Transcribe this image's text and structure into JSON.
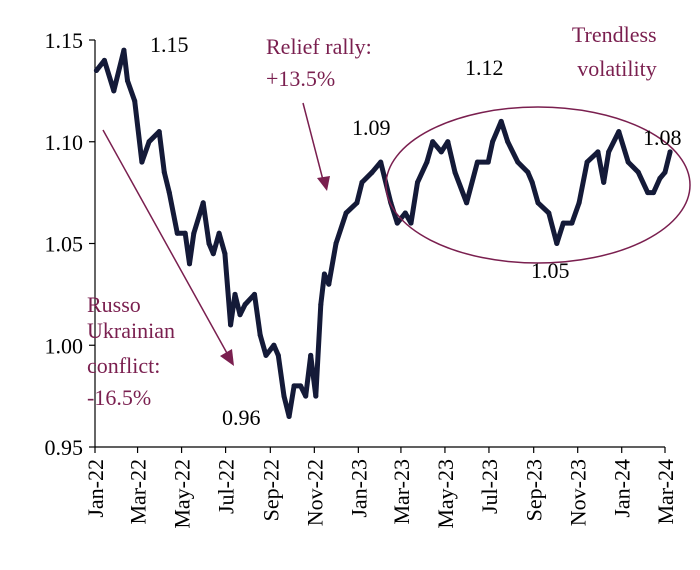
{
  "chart_data": {
    "type": "line",
    "title": "",
    "xlabel": "",
    "ylabel": "",
    "ylim": [
      0.95,
      1.15
    ],
    "yticks": [
      "0.95",
      "1.00",
      "1.05",
      "1.10",
      "1.15"
    ],
    "xticks": [
      "Jan-22",
      "Mar-22",
      "May-22",
      "Jul-22",
      "Sep-22",
      "Nov-22",
      "Jan-23",
      "Mar-23",
      "May-23",
      "Jul-23",
      "Sep-23",
      "Nov-23",
      "Jan-24",
      "Mar-24"
    ],
    "grid": false,
    "colors": {
      "line": "#141a38",
      "annotation": "#7a1f4f",
      "text": "#000000"
    },
    "series": [
      {
        "x": [
          "2022-01-03",
          "2022-01-14",
          "2022-01-27",
          "2022-02-10",
          "2022-02-15",
          "2022-02-25",
          "2022-03-07",
          "2022-03-17",
          "2022-03-31",
          "2022-04-07",
          "2022-04-14",
          "2022-04-25",
          "2022-05-06",
          "2022-05-12",
          "2022-05-18",
          "2022-05-31",
          "2022-06-08",
          "2022-06-14",
          "2022-06-22",
          "2022-06-30",
          "2022-07-08",
          "2022-07-14",
          "2022-07-21",
          "2022-07-28",
          "2022-08-10",
          "2022-08-18",
          "2022-08-26",
          "2022-09-06",
          "2022-09-12",
          "2022-09-20",
          "2022-09-27",
          "2022-10-04",
          "2022-10-13",
          "2022-10-20",
          "2022-10-27",
          "2022-11-03",
          "2022-11-10",
          "2022-11-15",
          "2022-11-21",
          "2022-12-01",
          "2022-12-15",
          "2022-12-30",
          "2023-01-06",
          "2023-01-20",
          "2023-02-01",
          "2023-02-15",
          "2023-02-24",
          "2023-03-07",
          "2023-03-15",
          "2023-03-24",
          "2023-04-06",
          "2023-04-14",
          "2023-04-26",
          "2023-05-05",
          "2023-05-15",
          "2023-05-31",
          "2023-06-15",
          "2023-06-30",
          "2023-07-06",
          "2023-07-18",
          "2023-07-27",
          "2023-08-10",
          "2023-08-24",
          "2023-08-30",
          "2023-09-07",
          "2023-09-22",
          "2023-10-03",
          "2023-10-12",
          "2023-10-24",
          "2023-11-03",
          "2023-11-14",
          "2023-11-29",
          "2023-12-07",
          "2023-12-14",
          "2023-12-28",
          "2024-01-10",
          "2024-01-24",
          "2024-02-06",
          "2024-02-14",
          "2024-02-23",
          "2024-03-01",
          "2024-03-08"
        ],
        "values": [
          1.135,
          1.14,
          1.125,
          1.145,
          1.13,
          1.12,
          1.09,
          1.1,
          1.105,
          1.085,
          1.075,
          1.055,
          1.055,
          1.04,
          1.055,
          1.07,
          1.05,
          1.045,
          1.055,
          1.045,
          1.01,
          1.025,
          1.015,
          1.02,
          1.025,
          1.005,
          0.995,
          1.0,
          0.995,
          0.975,
          0.965,
          0.98,
          0.98,
          0.975,
          0.995,
          0.975,
          1.02,
          1.035,
          1.03,
          1.05,
          1.065,
          1.07,
          1.08,
          1.085,
          1.09,
          1.07,
          1.06,
          1.065,
          1.06,
          1.08,
          1.09,
          1.1,
          1.095,
          1.1,
          1.085,
          1.07,
          1.09,
          1.09,
          1.1,
          1.11,
          1.1,
          1.09,
          1.085,
          1.08,
          1.07,
          1.065,
          1.05,
          1.06,
          1.06,
          1.07,
          1.09,
          1.095,
          1.08,
          1.095,
          1.105,
          1.09,
          1.085,
          1.075,
          1.075,
          1.082,
          1.085,
          1.095
        ]
      }
    ],
    "value_labels": [
      "1.15",
      "0.96",
      "1.09",
      "1.12",
      "1.05",
      "1.08"
    ],
    "annotations": {
      "conflict": [
        "Russo",
        "Ukrainian",
        "conflict:",
        "-16.5%"
      ],
      "rally": [
        "Relief rally:",
        "+13.5%"
      ],
      "trendless": [
        "Trendless",
        "volatility"
      ]
    }
  }
}
